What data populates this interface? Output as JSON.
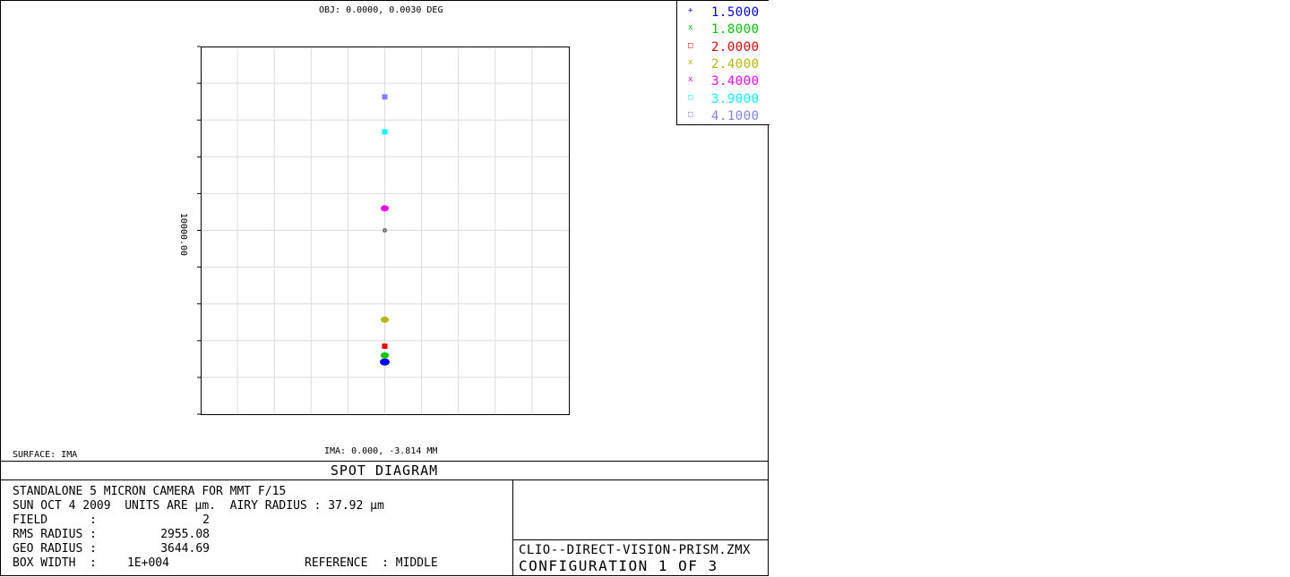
{
  "header": {
    "obj": "OBJ: 0.0000, 0.0030 DEG",
    "ima": "IMA: 0.000, -3.814 MM",
    "surface": "SURFACE: IMA",
    "scale_label": "10000.00"
  },
  "title": "SPOT DIAGRAM",
  "info": {
    "line1": "STANDALONE 5 MICRON CAMERA FOR MMT F/15",
    "line2": "SUN OCT 4 2009  UNITS ARE µm.  AIRY RADIUS : 37.92 µm",
    "field_label": "FIELD      :",
    "field_value": "2",
    "rms_label": "RMS RADIUS :",
    "rms_value": "2955.08",
    "geo_label": "GEO RADIUS :",
    "geo_value": "3644.69",
    "box_label": "BOX WIDTH  :",
    "box_value": "1E+004",
    "reference": "REFERENCE  : MIDDLE"
  },
  "file": {
    "name": "CLIO--DIRECT-VISION-PRISM.ZMX",
    "config": "CONFIGURATION 1 OF 3"
  },
  "chart_data": {
    "type": "scatter",
    "xlim": [
      -5000,
      5000
    ],
    "ylim": [
      -5000,
      5000
    ],
    "grid": true,
    "legend_position": "top-right",
    "series": [
      {
        "name": "1.5000",
        "color": "#0000ff",
        "marker": "+",
        "points": [
          [
            0,
            -3580
          ]
        ]
      },
      {
        "name": "1.8000",
        "color": "#00cc00",
        "marker": "x",
        "points": [
          [
            0,
            -3400
          ]
        ]
      },
      {
        "name": "2.0000",
        "color": "#ff0000",
        "marker": "square",
        "points": [
          [
            0,
            -3150
          ]
        ]
      },
      {
        "name": "2.4000",
        "color": "#b8b800",
        "marker": "x",
        "points": [
          [
            0,
            -2430
          ]
        ]
      },
      {
        "name": "3.4000",
        "color": "#ff00ff",
        "marker": "x",
        "points": [
          [
            0,
            600
          ]
        ]
      },
      {
        "name": "3.9000",
        "color": "#00ffff",
        "marker": "square",
        "points": [
          [
            0,
            2680
          ]
        ]
      },
      {
        "name": "4.1000",
        "color": "#7f7fff",
        "marker": "square",
        "points": [
          [
            0,
            3630
          ]
        ]
      }
    ],
    "chief_ray": [
      0,
      0
    ]
  }
}
